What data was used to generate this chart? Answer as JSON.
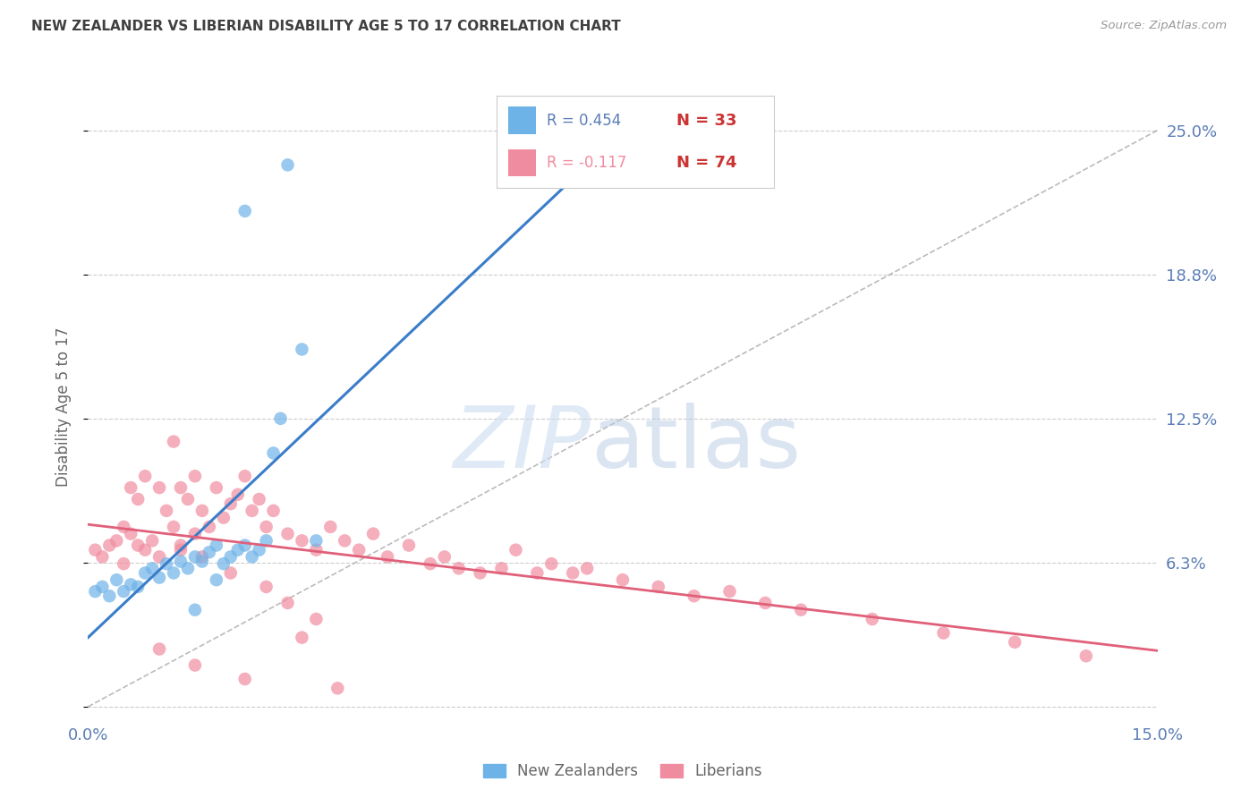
{
  "title": "NEW ZEALANDER VS LIBERIAN DISABILITY AGE 5 TO 17 CORRELATION CHART",
  "source": "Source: ZipAtlas.com",
  "ylabel": "Disability Age 5 to 17",
  "xmin": 0.0,
  "xmax": 0.15,
  "ymin": -0.005,
  "ymax": 0.265,
  "yticks": [
    0.0,
    0.0625,
    0.125,
    0.1875,
    0.25
  ],
  "ytick_labels_right": [
    "",
    "6.3%",
    "12.5%",
    "18.8%",
    "25.0%"
  ],
  "xtick_positions": [
    0.0,
    0.025,
    0.05,
    0.075,
    0.1,
    0.125,
    0.15
  ],
  "xtick_labels": [
    "0.0%",
    "",
    "",
    "",
    "",
    "",
    "15.0%"
  ],
  "r_nz": 0.454,
  "n_nz": 33,
  "r_lib": -0.117,
  "n_lib": 74,
  "color_nz": "#6eb3e8",
  "color_lib": "#f08ca0",
  "trend_color_nz": "#3a7dc9",
  "trend_color_lib": "#e0607a",
  "trend_color_diag": "#aaaaaa",
  "background_color": "#ffffff",
  "grid_color": "#cccccc",
  "tick_label_color": "#5b7db5",
  "title_color": "#404040",
  "nz_x": [
    0.001,
    0.002,
    0.003,
    0.004,
    0.005,
    0.006,
    0.007,
    0.008,
    0.009,
    0.01,
    0.011,
    0.012,
    0.013,
    0.014,
    0.015,
    0.016,
    0.017,
    0.018,
    0.019,
    0.02,
    0.021,
    0.022,
    0.023,
    0.024,
    0.025,
    0.026,
    0.027,
    0.03,
    0.022,
    0.028,
    0.032,
    0.018,
    0.015
  ],
  "nz_y": [
    0.05,
    0.052,
    0.048,
    0.055,
    0.05,
    0.053,
    0.052,
    0.058,
    0.06,
    0.056,
    0.062,
    0.058,
    0.063,
    0.06,
    0.065,
    0.063,
    0.067,
    0.07,
    0.062,
    0.065,
    0.068,
    0.07,
    0.065,
    0.068,
    0.072,
    0.11,
    0.125,
    0.155,
    0.215,
    0.235,
    0.072,
    0.055,
    0.042
  ],
  "lib_x": [
    0.001,
    0.002,
    0.003,
    0.004,
    0.005,
    0.005,
    0.006,
    0.006,
    0.007,
    0.007,
    0.008,
    0.008,
    0.009,
    0.01,
    0.01,
    0.011,
    0.012,
    0.012,
    0.013,
    0.013,
    0.014,
    0.015,
    0.015,
    0.016,
    0.017,
    0.018,
    0.019,
    0.02,
    0.021,
    0.022,
    0.023,
    0.024,
    0.025,
    0.026,
    0.028,
    0.03,
    0.032,
    0.034,
    0.036,
    0.038,
    0.04,
    0.042,
    0.045,
    0.048,
    0.05,
    0.052,
    0.055,
    0.058,
    0.06,
    0.063,
    0.065,
    0.068,
    0.07,
    0.075,
    0.08,
    0.085,
    0.09,
    0.095,
    0.1,
    0.11,
    0.12,
    0.13,
    0.14,
    0.013,
    0.016,
    0.02,
    0.025,
    0.028,
    0.032,
    0.01,
    0.015,
    0.022,
    0.03,
    0.035
  ],
  "lib_y": [
    0.068,
    0.065,
    0.07,
    0.072,
    0.062,
    0.078,
    0.075,
    0.095,
    0.07,
    0.09,
    0.068,
    0.1,
    0.072,
    0.065,
    0.095,
    0.085,
    0.078,
    0.115,
    0.07,
    0.095,
    0.09,
    0.075,
    0.1,
    0.085,
    0.078,
    0.095,
    0.082,
    0.088,
    0.092,
    0.1,
    0.085,
    0.09,
    0.078,
    0.085,
    0.075,
    0.072,
    0.068,
    0.078,
    0.072,
    0.068,
    0.075,
    0.065,
    0.07,
    0.062,
    0.065,
    0.06,
    0.058,
    0.06,
    0.068,
    0.058,
    0.062,
    0.058,
    0.06,
    0.055,
    0.052,
    0.048,
    0.05,
    0.045,
    0.042,
    0.038,
    0.032,
    0.028,
    0.022,
    0.068,
    0.065,
    0.058,
    0.052,
    0.045,
    0.038,
    0.025,
    0.018,
    0.012,
    0.03,
    0.008
  ]
}
